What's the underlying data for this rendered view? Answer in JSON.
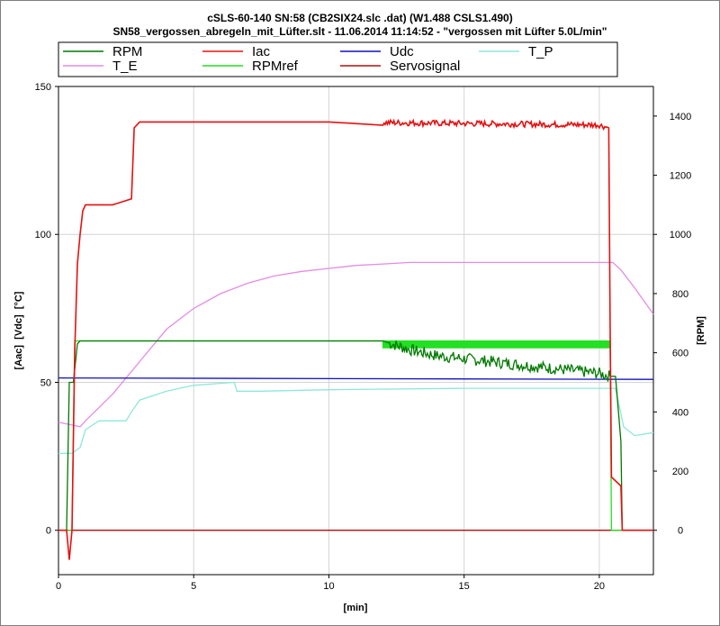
{
  "header": {
    "title": "cSLS-60-140 SN:58 (CB2SIX24.slc .dat) (W1.488 CSLS1.490)",
    "subtitle": "SN58_vergossen_abregeln_mit_Lüfter.slt - 11.06.2014 11:14:52 - \"vergossen mit Lüfter 5.0L/min\""
  },
  "chart_data": {
    "type": "line",
    "xlabel": "[min]",
    "ylabel_left": "[Aac]  [Vdc]  [°C]",
    "ylabel_right": "[RPM]",
    "xlim": [
      0,
      22
    ],
    "ylim_left": [
      -15,
      150
    ],
    "ylim_right": [
      -150,
      1500
    ],
    "x_ticks": [
      "0",
      "5",
      "10",
      "15",
      "20"
    ],
    "y_ticks_left": [
      "0",
      "50",
      "100",
      "150"
    ],
    "y_ticks_right": [
      "0",
      "200",
      "400",
      "600",
      "800",
      "1000",
      "1200",
      "1400"
    ],
    "grid": true,
    "legend_position": "top",
    "colors": {
      "RPM": "#007a00",
      "Iac": "#e81010",
      "Udc": "#1010c0",
      "T_P": "#8de8d8",
      "T_E": "#e48ce4",
      "RPMref": "#22e022",
      "Servosignal": "#b01010"
    },
    "series": [
      {
        "name": "RPM",
        "axis": "right",
        "x": [
          0,
          0.3,
          0.4,
          0.55,
          0.7,
          0.8,
          2.5,
          5,
          10,
          12,
          13,
          14,
          15,
          16,
          17,
          18,
          19,
          20,
          20.4,
          20.6,
          20.8,
          20.85,
          22
        ],
        "y": [
          0,
          0,
          500,
          500,
          630,
          640,
          640,
          640,
          640,
          640,
          610,
          590,
          580,
          570,
          560,
          550,
          540,
          530,
          520,
          520,
          300,
          0,
          0
        ],
        "noise": {
          "from": 12.2,
          "to": 20.4,
          "amplitude": 20
        }
      },
      {
        "name": "Iac",
        "axis": "left",
        "x": [
          0,
          0.3,
          0.4,
          0.5,
          0.6,
          0.7,
          0.8,
          0.9,
          1.0,
          2.0,
          2.7,
          2.8,
          3.0,
          5,
          10,
          15,
          20,
          20.35,
          20.4,
          20.45,
          20.8,
          20.85,
          22
        ],
        "y": [
          0,
          0,
          -10,
          0,
          60,
          90,
          100,
          108,
          110,
          110,
          112,
          136,
          138,
          138,
          138,
          137.5,
          137,
          136,
          70,
          18,
          15,
          0,
          0
        ],
        "noise": {
          "from": 12,
          "to": 20.3,
          "amplitude": 1
        }
      },
      {
        "name": "Udc",
        "axis": "left",
        "x": [
          0,
          22
        ],
        "y": [
          51.5,
          51
        ]
      },
      {
        "name": "T_P",
        "axis": "left",
        "x": [
          0,
          0.5,
          0.8,
          1.0,
          1.5,
          2.5,
          2.7,
          3.0,
          4.0,
          5.0,
          6.5,
          6.6,
          7.5,
          10,
          15,
          20,
          20.6,
          20.9,
          21.3,
          22
        ],
        "y": [
          26,
          26,
          28,
          34,
          37,
          37,
          40,
          44,
          47,
          49,
          50,
          47,
          47,
          47.5,
          48,
          48,
          48,
          35,
          32,
          33
        ]
      },
      {
        "name": "T_E",
        "axis": "left",
        "x": [
          0,
          0.8,
          1,
          2,
          3,
          4,
          5,
          6,
          7,
          8,
          9,
          10,
          11,
          12,
          13,
          14,
          15,
          16,
          17,
          18,
          19,
          20,
          20.5,
          20.8,
          21.3,
          22
        ],
        "y": [
          36.5,
          35,
          37,
          46,
          57,
          68,
          75,
          80,
          83.5,
          86,
          87.5,
          88.5,
          89.5,
          90,
          90.5,
          90.5,
          90.5,
          90.5,
          90.5,
          90.5,
          90.5,
          90.5,
          90.5,
          88,
          82,
          73
        ]
      },
      {
        "name": "RPMref",
        "axis": "right",
        "x": [
          0,
          0.5,
          0.6,
          0.8,
          12,
          20.4,
          20.45,
          22
        ],
        "y": [
          0,
          0,
          640,
          640,
          640,
          640,
          0,
          0
        ],
        "band": {
          "from": 12,
          "to": 20.4,
          "lo": 615,
          "hi": 640
        }
      },
      {
        "name": "Servosignal",
        "axis": "left",
        "x": [
          0,
          22
        ],
        "y": [
          0,
          0
        ]
      }
    ]
  }
}
